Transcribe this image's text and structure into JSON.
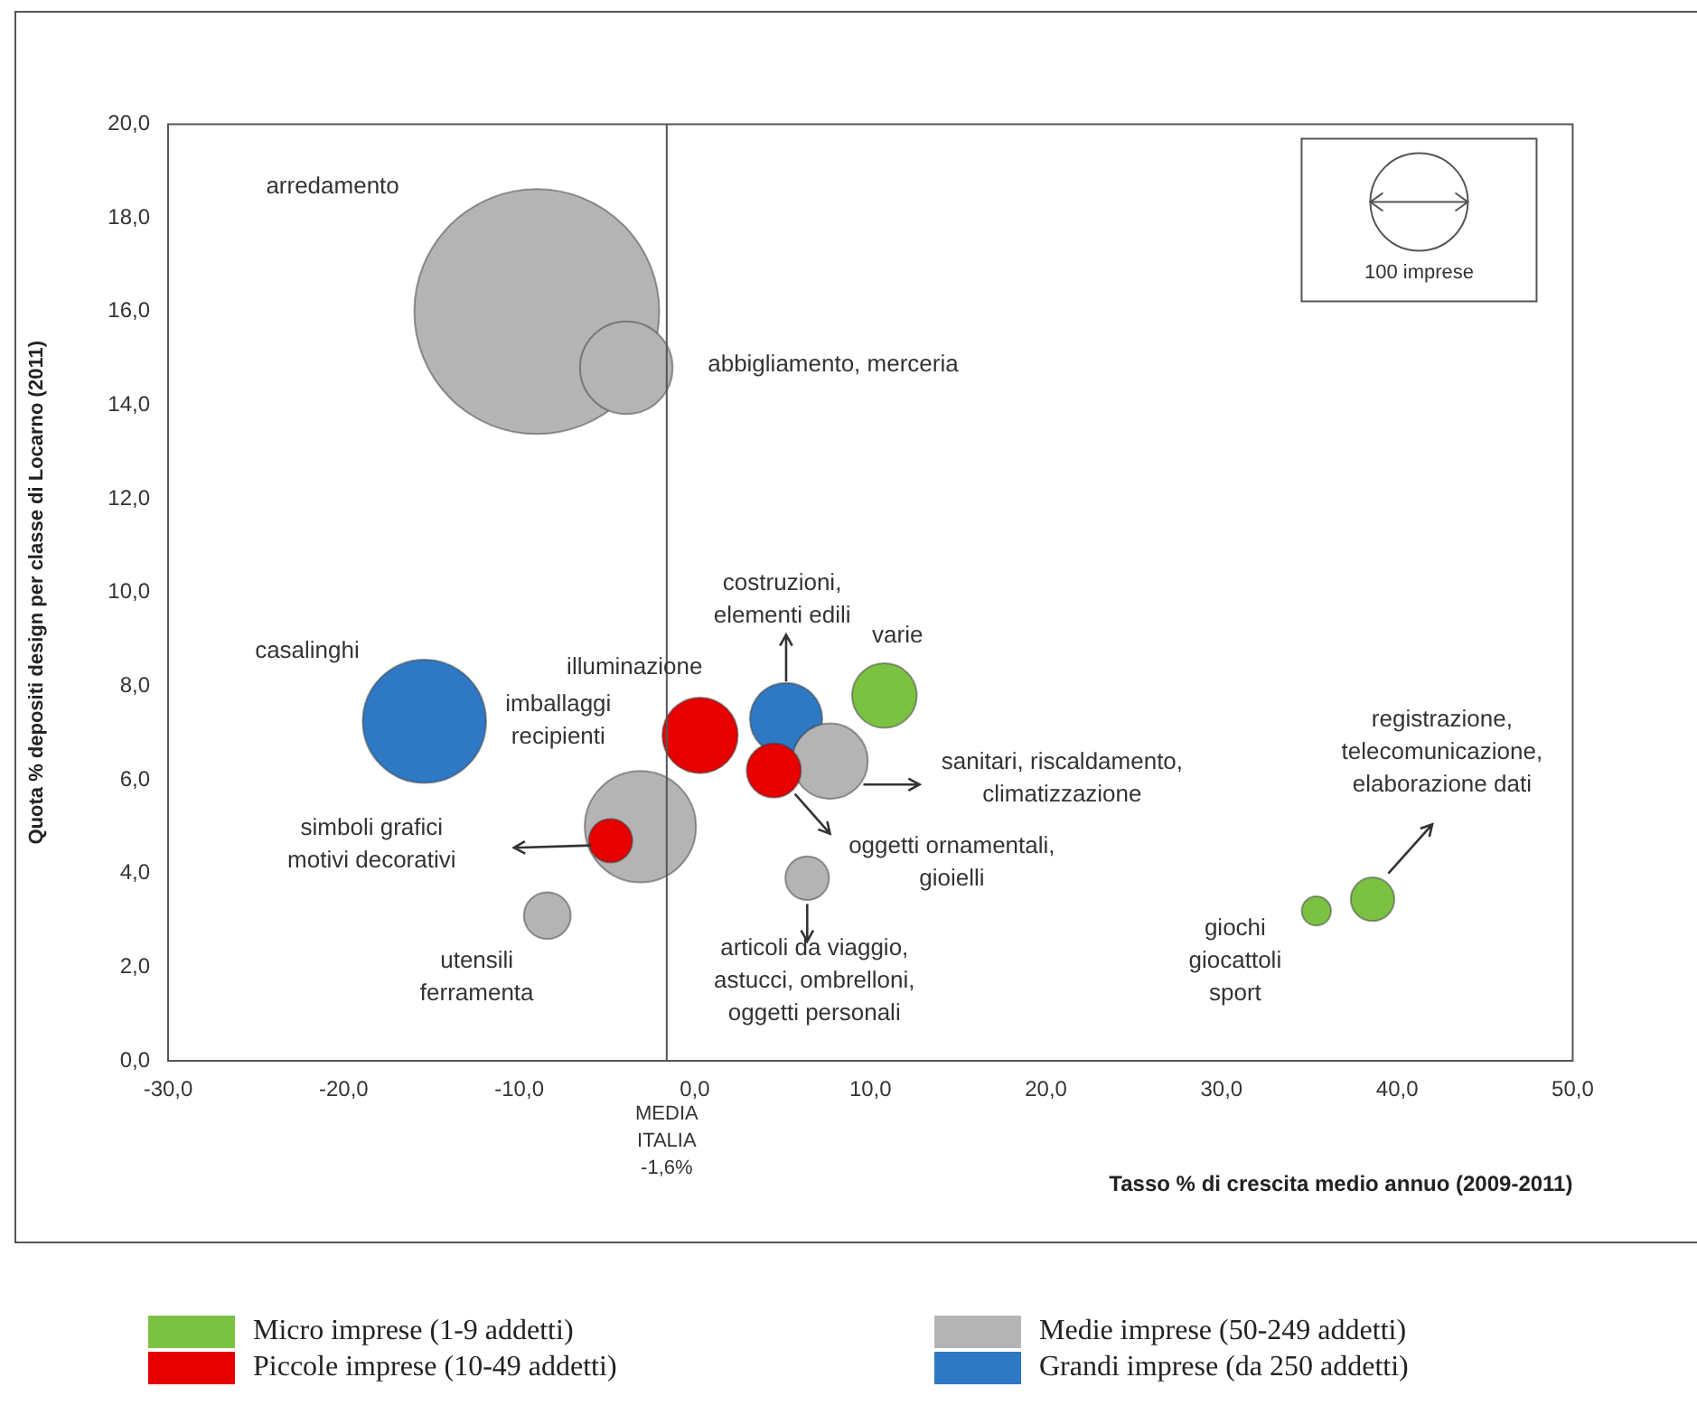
{
  "chart_data": {
    "type": "bubble",
    "xlabel": "Tasso % di crescita medio annuo (2009-2011)",
    "ylabel": "Quota % depositi design per classe di Locarno (2011)",
    "xlim": [
      -30,
      50
    ],
    "xticks": [
      {
        "value": -30,
        "label": "-30,0"
      },
      {
        "value": -20,
        "label": "-20,0"
      },
      {
        "value": -10,
        "label": "-10,0"
      },
      {
        "value": 0,
        "label": "0,0"
      },
      {
        "value": 10,
        "label": "10,0"
      },
      {
        "value": 20,
        "label": "20,0"
      },
      {
        "value": 30,
        "label": "30,0"
      },
      {
        "value": 40,
        "label": "40,0"
      },
      {
        "value": 50,
        "label": "50,0"
      }
    ],
    "ylim": [
      0,
      20
    ],
    "yticks": [
      {
        "value": 0,
        "label": "0,0"
      },
      {
        "value": 2,
        "label": "2,0"
      },
      {
        "value": 4,
        "label": "4,0"
      },
      {
        "value": 6,
        "label": "6,0"
      },
      {
        "value": 8,
        "label": "8,0"
      },
      {
        "value": 10,
        "label": "10,0"
      },
      {
        "value": 12,
        "label": "12,0"
      },
      {
        "value": 14,
        "label": "14,0"
      },
      {
        "value": 16,
        "label": "16,0"
      },
      {
        "value": 18,
        "label": "18,0"
      },
      {
        "value": 20,
        "label": "20,0"
      }
    ],
    "series": [
      {
        "name": "Micro imprese (1-9 addetti)",
        "color": "#7cc242",
        "x": [
          10.8,
          35.4,
          38.6
        ],
        "values": [
          7.8,
          3.2,
          3.45
        ],
        "sizes": [
          44,
          9,
          20
        ]
      },
      {
        "name": "Piccole imprese (10-49 addetti)",
        "color": "#e60000",
        "x": [
          0.3,
          4.5,
          -4.8
        ],
        "values": [
          6.95,
          6.2,
          4.7
        ],
        "sizes": [
          60,
          31,
          20
        ]
      },
      {
        "name": "Medie imprese (50-249 addetti)",
        "color": "#b4b4b4",
        "x": [
          -9.0,
          -3.9,
          -3.1,
          -8.4,
          7.7,
          6.4
        ],
        "values": [
          16.0,
          14.8,
          5.0,
          3.1,
          6.4,
          3.9
        ],
        "sizes": [
          630,
          90,
          130,
          23,
          60,
          20
        ]
      },
      {
        "name": "Grandi imprese (da 250 addetti)",
        "color": "#2f78c4",
        "x": [
          -15.4,
          5.2
        ],
        "values": [
          7.25,
          7.3
        ],
        "sizes": [
          160,
          55
        ]
      }
    ],
    "size_legend": [
      {
        "value": 100,
        "label": "100 imprese"
      }
    ],
    "ref_lines": [
      {
        "axis": "x",
        "value": -1.6,
        "label": "MEDIA\nITALIA\n-1,6%"
      }
    ],
    "annotations": [
      "arredamento",
      "abbigliamento, merceria",
      "costruzioni,\nelementi edili",
      "varie",
      "casalinghi",
      "illuminazione",
      "imballaggi\nrecipienti",
      "simboli grafici\nmotivi decorativi",
      "utensili\nferramenta",
      "sanitari, riscaldamento,\nclimatizzazione",
      "oggetti ornamentali,\ngioielli",
      "articoli da viaggio,\nastucci, ombrelloni,\noggetti personali",
      "registrazione,\ntelecomunicazione,\nelaborazione dati",
      "giochi\ngiocattoli\nsport"
    ],
    "grid": false,
    "legend": "bottom"
  }
}
